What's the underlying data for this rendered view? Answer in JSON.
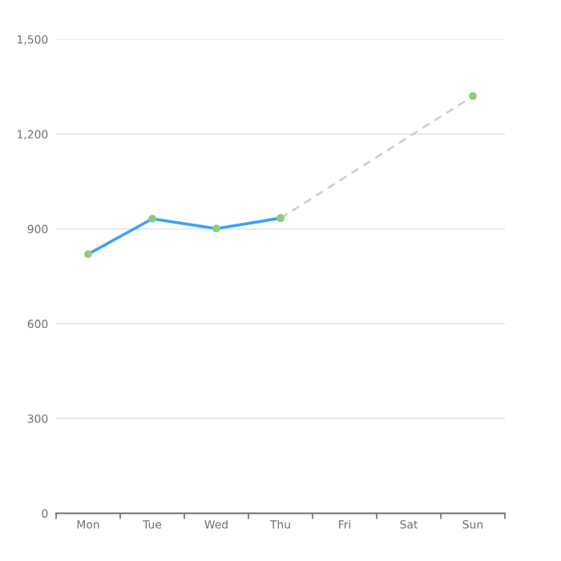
{
  "chart_data": {
    "type": "line",
    "categories": [
      "Mon",
      "Tue",
      "Wed",
      "Thu",
      "Fri",
      "Sat",
      "Sun"
    ],
    "series": [
      {
        "color": "#3ba1ff",
        "line_style": "solid",
        "colors": [
          "#91cc75",
          "#91cc75",
          "#91cc75",
          "#91cc75",
          null,
          null,
          null
        ],
        "values": [
          820,
          932,
          901,
          934,
          null,
          null,
          null
        ]
      },
      {
        "color": "#cccccc",
        "line_style": "dashed",
        "colors": [
          null,
          null,
          null,
          "#91cc75",
          null,
          null,
          "#91cc75"
        ],
        "values": [
          null,
          null,
          null,
          934,
          null,
          null,
          1320
        ]
      }
    ],
    "ylim": [
      0,
      1500
    ],
    "yticks": [
      {
        "value": 0,
        "label": "0"
      },
      {
        "value": 300,
        "label": "300"
      },
      {
        "value": 600,
        "label": "600"
      },
      {
        "value": 900,
        "label": "900"
      },
      {
        "value": 1200,
        "label": "1,200"
      },
      {
        "value": 1500,
        "label": "1,500"
      }
    ],
    "grid": "y",
    "marker": "circle"
  }
}
